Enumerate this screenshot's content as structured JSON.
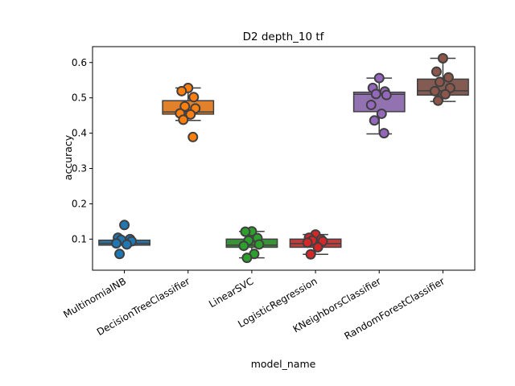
{
  "chart_data": {
    "type": "box",
    "title": "D2 depth_10 tf",
    "xlabel": "model_name",
    "ylabel": "accuracy",
    "ylim": [
      0.012,
      0.645
    ],
    "yticks": [
      0.1,
      0.2,
      0.3,
      0.4,
      0.5,
      0.6
    ],
    "yticklabels": [
      "0.1",
      "0.2",
      "0.3",
      "0.4",
      "0.5",
      "0.6"
    ],
    "categories": [
      "MultinomiaINB",
      "DecisionTreeClassifier",
      "LinearSVC",
      "LogisticRegression",
      "KNeighborsClassifier",
      "RandomForestClassifier"
    ],
    "series": [
      {
        "box_color": "#3274a1",
        "point_color": "#1f77b4",
        "q1": 0.083,
        "median": 0.088,
        "q3": 0.097,
        "whisker_low": 0.083,
        "whisker_high": 0.097,
        "points": [
          0.14,
          0.104,
          0.1,
          0.098,
          0.094,
          0.088,
          0.085,
          0.058
        ]
      },
      {
        "box_color": "#e1812c",
        "point_color": "#ff7f0e",
        "q1": 0.454,
        "median": 0.46,
        "q3": 0.492,
        "whisker_low": 0.436,
        "whisker_high": 0.528,
        "points": [
          0.528,
          0.519,
          0.502,
          0.476,
          0.47,
          0.456,
          0.453,
          0.438,
          0.389
        ]
      },
      {
        "box_color": "#3a923a",
        "point_color": "#2ca02c",
        "q1": 0.077,
        "median": 0.083,
        "q3": 0.1,
        "whisker_low": 0.047,
        "whisker_high": 0.122,
        "points": [
          0.122,
          0.121,
          0.103,
          0.096,
          0.085,
          0.081,
          0.058,
          0.047
        ]
      },
      {
        "box_color": "#c03d3e",
        "point_color": "#d62728",
        "q1": 0.077,
        "median": 0.087,
        "q3": 0.1,
        "whisker_low": 0.057,
        "whisker_high": 0.113,
        "points": [
          0.113,
          0.104,
          0.099,
          0.096,
          0.094,
          0.09,
          0.077,
          0.057
        ]
      },
      {
        "box_color": "#9372b2",
        "point_color": "#9467bd",
        "q1": 0.461,
        "median": 0.51,
        "q3": 0.516,
        "whisker_low": 0.398,
        "whisker_high": 0.556,
        "points": [
          0.556,
          0.528,
          0.518,
          0.511,
          0.508,
          0.48,
          0.455,
          0.436,
          0.4
        ]
      },
      {
        "box_color": "#845b53",
        "point_color": "#8c564b",
        "q1": 0.508,
        "median": 0.52,
        "q3": 0.553,
        "whisker_low": 0.49,
        "whisker_high": 0.612,
        "points": [
          0.612,
          0.574,
          0.558,
          0.545,
          0.528,
          0.519,
          0.51,
          0.492
        ]
      }
    ]
  }
}
